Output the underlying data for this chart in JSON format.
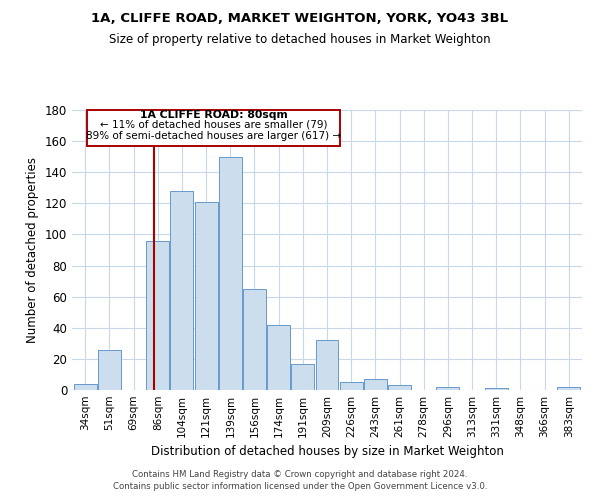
{
  "title": "1A, CLIFFE ROAD, MARKET WEIGHTON, YORK, YO43 3BL",
  "subtitle": "Size of property relative to detached houses in Market Weighton",
  "xlabel": "Distribution of detached houses by size in Market Weighton",
  "ylabel": "Number of detached properties",
  "bar_color": "#ccdded",
  "bar_edge_color": "#6699cc",
  "categories": [
    "34sqm",
    "51sqm",
    "69sqm",
    "86sqm",
    "104sqm",
    "121sqm",
    "139sqm",
    "156sqm",
    "174sqm",
    "191sqm",
    "209sqm",
    "226sqm",
    "243sqm",
    "261sqm",
    "278sqm",
    "296sqm",
    "313sqm",
    "331sqm",
    "348sqm",
    "366sqm",
    "383sqm"
  ],
  "values": [
    4,
    26,
    0,
    96,
    128,
    121,
    150,
    65,
    42,
    17,
    32,
    5,
    7,
    3,
    0,
    2,
    0,
    1,
    0,
    0,
    2
  ],
  "ylim": [
    0,
    180
  ],
  "yticks": [
    0,
    20,
    40,
    60,
    80,
    100,
    120,
    140,
    160,
    180
  ],
  "vline_x": 2.85,
  "vline_color": "#aa0000",
  "annotation_line1": "1A CLIFFE ROAD: 80sqm",
  "annotation_line2": "← 11% of detached houses are smaller (79)",
  "annotation_line3": "89% of semi-detached houses are larger (617) →",
  "footer_line1": "Contains HM Land Registry data © Crown copyright and database right 2024.",
  "footer_line2": "Contains public sector information licensed under the Open Government Licence v3.0.",
  "background_color": "#ffffff",
  "grid_color": "#c8d8e8"
}
